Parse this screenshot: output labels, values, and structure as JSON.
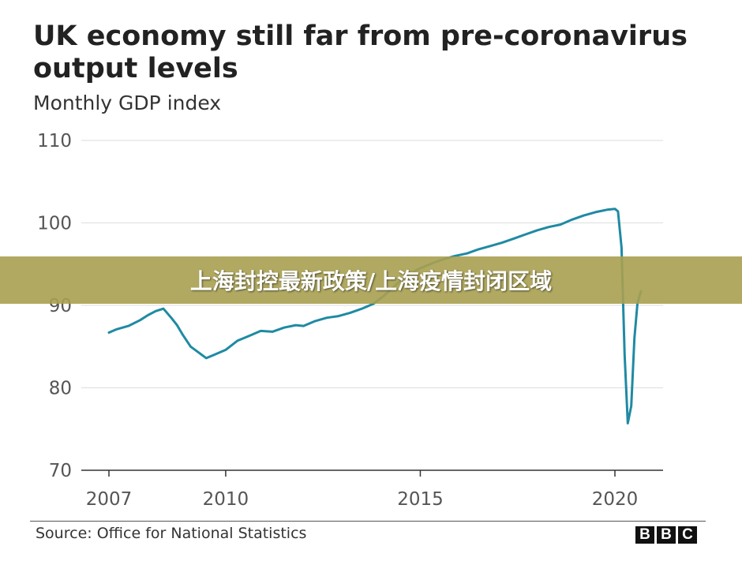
{
  "chart_data": {
    "type": "line",
    "title": "UK economy still far from pre-coronavirus output levels",
    "subtitle": "Monthly GDP index",
    "xlabel": "",
    "ylabel": "",
    "xlim": [
      2006.5,
      2021.2
    ],
    "ylim": [
      70,
      110
    ],
    "yticks": [
      70,
      80,
      90,
      100,
      110
    ],
    "xticks": [
      2007,
      2010,
      2015,
      2020
    ],
    "ytick_labels": [
      "70",
      "80",
      "90",
      "100",
      "110"
    ],
    "xtick_labels": [
      "2007",
      "2010",
      "2015",
      "2020"
    ],
    "grid": "horizontal",
    "line_color": "#1f8aa3",
    "series": [
      {
        "x": [
          2007.0,
          2007.2,
          2007.5,
          2007.8,
          2008.0,
          2008.2,
          2008.4,
          2008.6,
          2008.75,
          2008.9,
          2009.1,
          2009.3,
          2009.5,
          2009.7,
          2009.9,
          2010.0,
          2010.3,
          2010.6,
          2010.9,
          2011.2,
          2011.5,
          2011.8,
          2012.0,
          2012.3,
          2012.6,
          2012.9,
          2013.2,
          2013.5,
          2013.8,
          2014.1,
          2014.4,
          2014.7,
          2015.0,
          2015.3,
          2015.6,
          2015.9,
          2016.2,
          2016.5,
          2016.8,
          2017.1,
          2017.4,
          2017.7,
          2018.0,
          2018.3,
          2018.6,
          2018.9,
          2019.2,
          2019.5,
          2019.8,
          2020.0,
          2020.08,
          2020.17,
          2020.25,
          2020.33,
          2020.42,
          2020.5,
          2020.58,
          2020.67
        ],
        "values": [
          86.7,
          87.1,
          87.5,
          88.2,
          88.8,
          89.3,
          89.6,
          88.5,
          87.6,
          86.4,
          85.0,
          84.3,
          83.6,
          84.0,
          84.4,
          84.6,
          85.7,
          86.3,
          86.9,
          86.8,
          87.3,
          87.6,
          87.5,
          88.1,
          88.5,
          88.7,
          89.1,
          89.6,
          90.2,
          91.3,
          92.6,
          93.8,
          94.5,
          95.1,
          95.6,
          96.0,
          96.3,
          96.8,
          97.2,
          97.6,
          98.1,
          98.6,
          99.1,
          99.5,
          99.8,
          100.4,
          100.9,
          101.3,
          101.6,
          101.7,
          101.4,
          97.0,
          84.0,
          75.7,
          77.8,
          86.0,
          90.3,
          91.7
        ]
      }
    ]
  },
  "footer": {
    "source": "Source: Office for National Statistics",
    "logo": [
      "B",
      "B",
      "C"
    ]
  },
  "banner": {
    "text": "上海封控最新政策/上海疫情封闭区域"
  }
}
